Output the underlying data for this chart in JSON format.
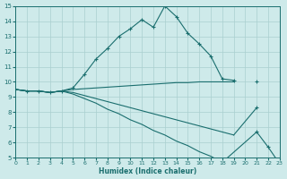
{
  "xlabel": "Humidex (Indice chaleur)",
  "background_color": "#ceeaea",
  "grid_color": "#aacfcf",
  "line_color": "#1a6e6e",
  "xlim": [
    0,
    23
  ],
  "ylim": [
    5,
    15
  ],
  "line1": {
    "x": [
      0,
      1,
      2,
      3,
      4,
      5,
      6,
      7,
      8,
      9,
      10,
      11,
      12,
      13,
      14,
      15,
      16,
      17,
      18,
      19
    ],
    "y": [
      9.5,
      9.4,
      9.4,
      9.3,
      9.4,
      9.6,
      10.5,
      11.5,
      12.2,
      13.0,
      13.5,
      14.1,
      13.6,
      15.0,
      14.3,
      13.2,
      12.5,
      11.7,
      10.2,
      10.1
    ],
    "marker": "+"
  },
  "line2": {
    "x": [
      0,
      1,
      2,
      3,
      4,
      5,
      6,
      7,
      8,
      9,
      10,
      11,
      12,
      13,
      14,
      15,
      16,
      17,
      18,
      19,
      21
    ],
    "y": [
      9.5,
      9.4,
      9.4,
      9.3,
      9.4,
      9.5,
      9.55,
      9.6,
      9.65,
      9.7,
      9.75,
      9.8,
      9.85,
      9.9,
      9.95,
      9.95,
      10.0,
      10.0,
      10.0,
      10.0,
      10.05
    ],
    "marker": "+"
  },
  "line3": {
    "x": [
      0,
      1,
      2,
      3,
      4,
      5,
      6,
      7,
      8,
      9,
      10,
      11,
      12,
      13,
      14,
      15,
      16,
      17,
      18,
      19,
      21
    ],
    "y": [
      9.5,
      9.4,
      9.4,
      9.3,
      9.4,
      9.3,
      9.1,
      8.9,
      8.7,
      8.5,
      8.3,
      8.1,
      7.9,
      7.7,
      7.5,
      7.3,
      7.1,
      6.9,
      6.7,
      6.5,
      8.3
    ],
    "marker": "+"
  },
  "line4": {
    "x": [
      0,
      1,
      2,
      3,
      4,
      5,
      6,
      7,
      8,
      9,
      10,
      11,
      12,
      13,
      14,
      15,
      16,
      17,
      18,
      21,
      22,
      23
    ],
    "y": [
      9.5,
      9.4,
      9.4,
      9.3,
      9.4,
      9.2,
      8.9,
      8.6,
      8.2,
      7.9,
      7.5,
      7.2,
      6.8,
      6.5,
      6.1,
      5.8,
      5.4,
      5.1,
      4.7,
      6.7,
      5.7,
      4.6
    ],
    "marker": "+"
  }
}
